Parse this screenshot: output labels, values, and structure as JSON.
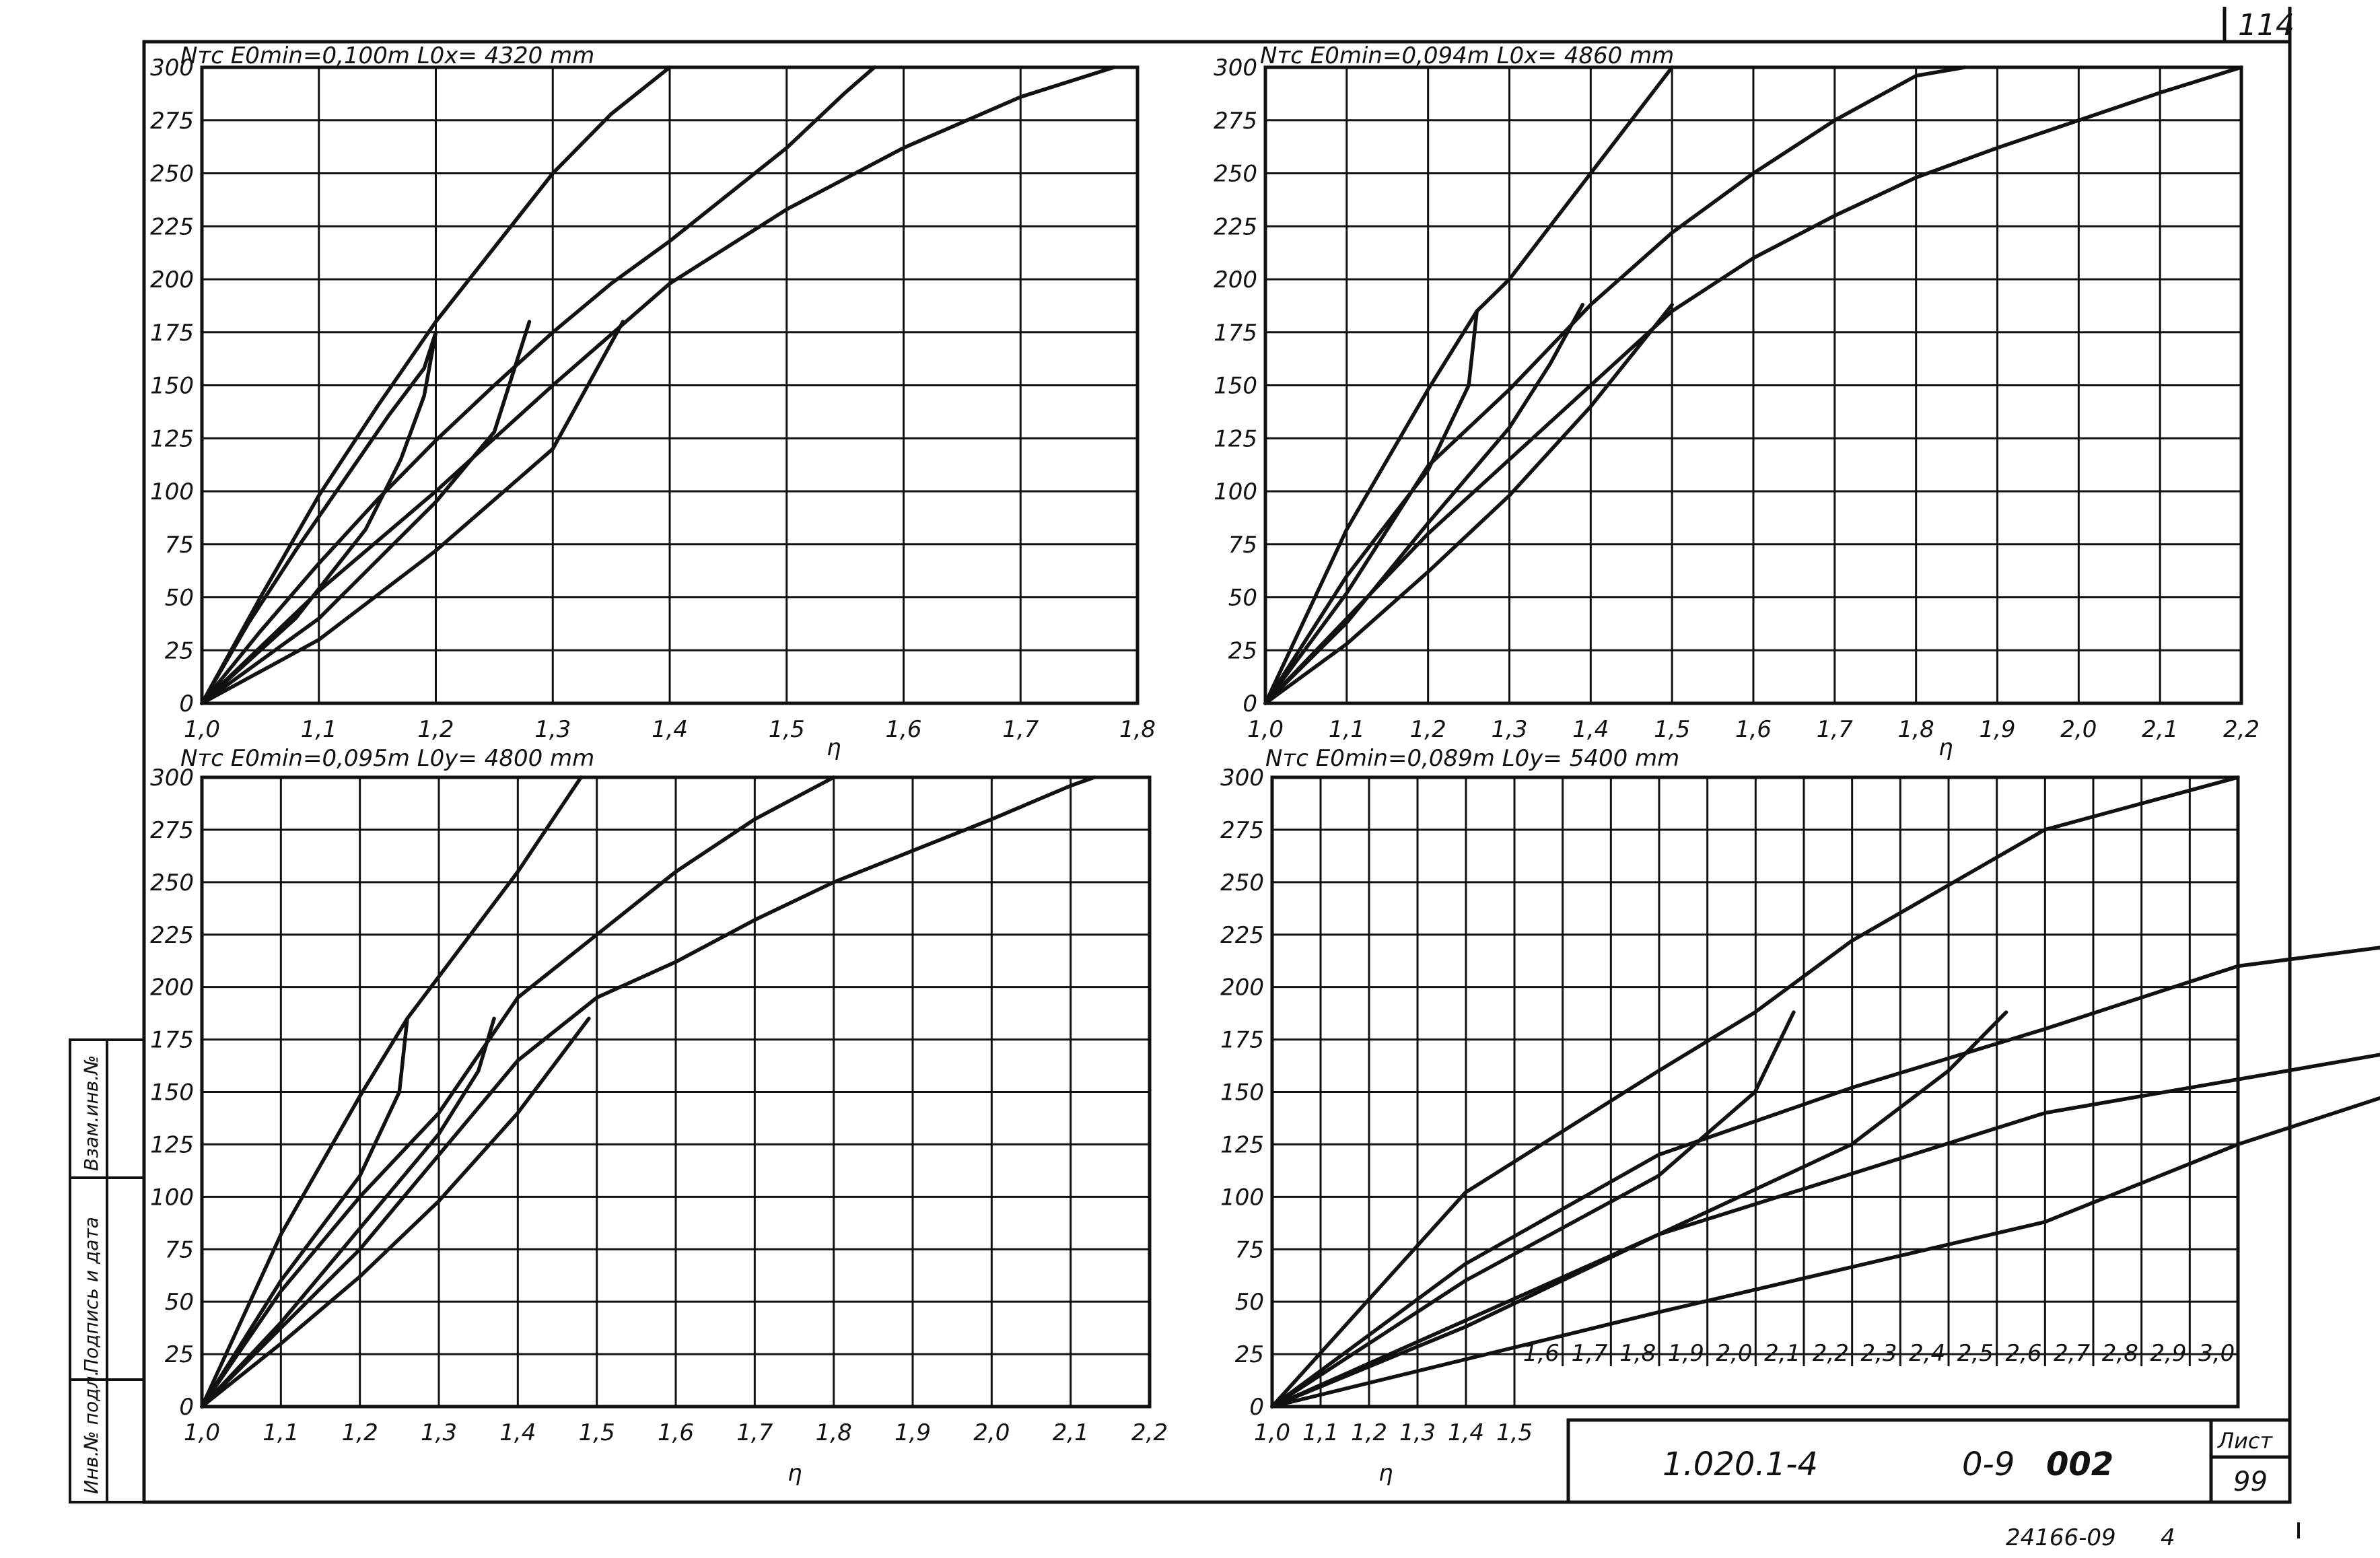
{
  "sheet": {
    "page_number": "114",
    "designation": "1.020.1-4",
    "series_code": "0-9",
    "drawing_no": "002",
    "list_label": "Лист",
    "list_number": "99",
    "footer_code": "24166-09",
    "footer_num": "4",
    "side_labels": [
      "Инв.№ подл.",
      "Подпись и дата",
      "Взам.инв.№"
    ]
  },
  "chart_data": [
    {
      "type": "line",
      "title": "Nтс  E0min=0,100m        L0x= 4320 mm",
      "ylabel": "Nтс",
      "xlabel": "η",
      "xlim": [
        1.0,
        1.8
      ],
      "ylim": [
        0,
        300
      ],
      "x_ticks": [
        "1,0",
        "1,1",
        "1,2",
        "1,3",
        "1,4",
        "1,5",
        "1,6",
        "1,7",
        "1,8"
      ],
      "y_ticks": [
        "0",
        "25",
        "50",
        "75",
        "100",
        "125",
        "150",
        "175",
        "200",
        "225",
        "250",
        "275",
        "300"
      ],
      "grid": true,
      "series": [
        {
          "x": [
            1.0,
            1.05,
            1.1,
            1.15,
            1.2,
            1.26,
            1.3,
            1.35,
            1.4
          ],
          "y": [
            0,
            50,
            98,
            140,
            180,
            222,
            250,
            278,
            300
          ]
        },
        {
          "x": [
            1.0,
            1.05,
            1.1,
            1.15,
            1.2,
            1.25,
            1.3,
            1.35,
            1.4,
            1.45,
            1.5,
            1.55,
            1.575
          ],
          "y": [
            0,
            34,
            66,
            96,
            124,
            150,
            175,
            198,
            218,
            240,
            262,
            288,
            300
          ]
        },
        {
          "x": [
            1.0,
            1.1,
            1.2,
            1.3,
            1.4,
            1.5,
            1.6,
            1.7,
            1.78
          ],
          "y": [
            0,
            53,
            100,
            150,
            198,
            233,
            262,
            286,
            300
          ]
        },
        {
          "x": [
            1.0,
            1.1,
            1.2,
            1.25,
            1.28
          ],
          "y": [
            0,
            40,
            95,
            128,
            180
          ]
        },
        {
          "x": [
            1.0,
            1.1,
            1.2,
            1.3,
            1.36
          ],
          "y": [
            0,
            30,
            72,
            120,
            180
          ]
        },
        {
          "x": [
            1.0,
            1.04,
            1.08,
            1.12,
            1.16,
            1.19,
            1.2
          ],
          "y": [
            0,
            38,
            72,
            104,
            136,
            158,
            175
          ]
        },
        {
          "x": [
            1.0,
            1.08,
            1.14,
            1.17,
            1.19,
            1.2
          ],
          "y": [
            0,
            40,
            82,
            115,
            145,
            175
          ]
        }
      ]
    },
    {
      "type": "line",
      "title": "Nтс  E0min=0,094m        L0x= 4860 mm",
      "ylabel": "Nтс",
      "xlabel": "η",
      "xlim": [
        1.0,
        2.2
      ],
      "ylim": [
        0,
        300
      ],
      "x_ticks": [
        "1,0",
        "1,1",
        "1,2",
        "1,3",
        "1,4",
        "1,5",
        "1,6",
        "1,7",
        "1,8",
        "1,9",
        "2,0",
        "2,1",
        "2,2"
      ],
      "y_ticks": [
        "0",
        "25",
        "50",
        "75",
        "100",
        "125",
        "150",
        "175",
        "200",
        "225",
        "250",
        "275",
        "300"
      ],
      "grid": true,
      "series": [
        {
          "x": [
            1.0,
            1.1,
            1.2,
            1.26,
            1.3,
            1.4,
            1.5
          ],
          "y": [
            0,
            82,
            148,
            185,
            200,
            250,
            300
          ]
        },
        {
          "x": [
            1.0,
            1.1,
            1.2,
            1.3,
            1.4,
            1.5,
            1.6,
            1.7,
            1.8,
            1.86
          ],
          "y": [
            0,
            52,
            112,
            148,
            188,
            222,
            250,
            275,
            296,
            300
          ]
        },
        {
          "x": [
            1.0,
            1.2,
            1.4,
            1.5,
            1.6,
            1.7,
            1.8,
            1.9,
            2.0,
            2.1,
            2.2
          ],
          "y": [
            0,
            80,
            150,
            185,
            210,
            230,
            248,
            262,
            275,
            288,
            300
          ]
        },
        {
          "x": [
            1.0,
            1.1,
            1.2,
            1.25,
            1.26
          ],
          "y": [
            0,
            60,
            110,
            150,
            185
          ]
        },
        {
          "x": [
            1.0,
            1.1,
            1.2,
            1.3,
            1.35,
            1.39
          ],
          "y": [
            0,
            38,
            85,
            130,
            160,
            188
          ]
        },
        {
          "x": [
            1.0,
            1.1,
            1.2,
            1.3,
            1.4,
            1.5
          ],
          "y": [
            0,
            28,
            62,
            98,
            140,
            188
          ]
        }
      ]
    },
    {
      "type": "line",
      "title": "Nтс  E0min=0,095m        L0y= 4800 mm",
      "ylabel": "Nтс",
      "xlabel": "η",
      "xlim": [
        1.0,
        2.2
      ],
      "ylim": [
        0,
        300
      ],
      "x_ticks": [
        "1,0",
        "1,1",
        "1,2",
        "1,3",
        "1,4",
        "1,5",
        "1,6",
        "1,7",
        "1,8",
        "1,9",
        "2,0",
        "2,1",
        "2,2"
      ],
      "y_ticks": [
        "0",
        "25",
        "50",
        "75",
        "100",
        "125",
        "150",
        "175",
        "200",
        "225",
        "250",
        "275",
        "300"
      ],
      "grid": true,
      "series": [
        {
          "x": [
            1.0,
            1.1,
            1.2,
            1.26,
            1.3,
            1.4,
            1.48
          ],
          "y": [
            0,
            82,
            148,
            185,
            205,
            255,
            300
          ]
        },
        {
          "x": [
            1.0,
            1.1,
            1.2,
            1.3,
            1.4,
            1.5,
            1.6,
            1.7,
            1.8
          ],
          "y": [
            0,
            55,
            100,
            140,
            195,
            225,
            255,
            280,
            300
          ]
        },
        {
          "x": [
            1.0,
            1.2,
            1.4,
            1.5,
            1.6,
            1.7,
            1.8,
            1.9,
            2.0,
            2.1,
            2.13
          ],
          "y": [
            0,
            75,
            165,
            195,
            212,
            232,
            250,
            265,
            280,
            296,
            300
          ]
        },
        {
          "x": [
            1.0,
            1.1,
            1.2,
            1.25,
            1.26
          ],
          "y": [
            0,
            60,
            110,
            150,
            185
          ]
        },
        {
          "x": [
            1.0,
            1.1,
            1.2,
            1.3,
            1.35,
            1.37
          ],
          "y": [
            0,
            40,
            85,
            130,
            160,
            185
          ]
        },
        {
          "x": [
            1.0,
            1.1,
            1.2,
            1.3,
            1.4,
            1.49
          ],
          "y": [
            0,
            30,
            62,
            98,
            140,
            185
          ]
        }
      ]
    },
    {
      "type": "line",
      "title": "Nтс  E0min=0,089m        L0y= 5400 mm",
      "ylabel": "Nтс",
      "xlabel": "η",
      "xlim": [
        1.0,
        1.5
      ],
      "ylim": [
        0,
        300
      ],
      "x_ticks": [
        "1,0",
        "1,1",
        "1,2",
        "1,3",
        "1,4",
        "1,5"
      ],
      "x2_ticks": [
        "1,6",
        "1,7",
        "1,8",
        "1,9",
        "2,0",
        "2,1",
        "2,2",
        "2,3",
        "2,4",
        "2,5",
        "2,6",
        "2,7",
        "2,8",
        "2,9",
        "3,0"
      ],
      "y_ticks": [
        "0",
        "25",
        "50",
        "75",
        "100",
        "125",
        "150",
        "175",
        "200",
        "225",
        "250",
        "275",
        "300"
      ],
      "grid": true,
      "series": [
        {
          "x": [
            1.0,
            1.1,
            1.2,
            1.25,
            1.3,
            1.4,
            1.5
          ],
          "y": [
            0,
            102,
            160,
            188,
            222,
            275,
            300
          ]
        },
        {
          "x": [
            1.0,
            1.1,
            1.2,
            1.3,
            1.4,
            1.5,
            1.6,
            1.8,
            2.0,
            2.2
          ],
          "y": [
            0,
            68,
            120,
            152,
            180,
            210,
            222,
            248,
            274,
            300
          ]
        },
        {
          "x": [
            1.0,
            1.2,
            1.4,
            1.6,
            1.7,
            1.8,
            2.0,
            2.2,
            2.4,
            2.6,
            2.8,
            2.93
          ],
          "y": [
            0,
            82,
            140,
            172,
            188,
            198,
            222,
            248,
            262,
            276,
            290,
            300
          ]
        },
        {
          "x": [
            1.0,
            1.1,
            1.2,
            1.25,
            1.27
          ],
          "y": [
            0,
            60,
            110,
            150,
            188
          ]
        },
        {
          "x": [
            1.0,
            1.1,
            1.2,
            1.3,
            1.35,
            1.38
          ],
          "y": [
            0,
            38,
            82,
            125,
            160,
            188
          ]
        },
        {
          "x": [
            1.0,
            1.2,
            1.4,
            1.5,
            1.6,
            1.72
          ],
          "y": [
            0,
            45,
            88,
            125,
            155,
            190
          ]
        }
      ]
    }
  ]
}
